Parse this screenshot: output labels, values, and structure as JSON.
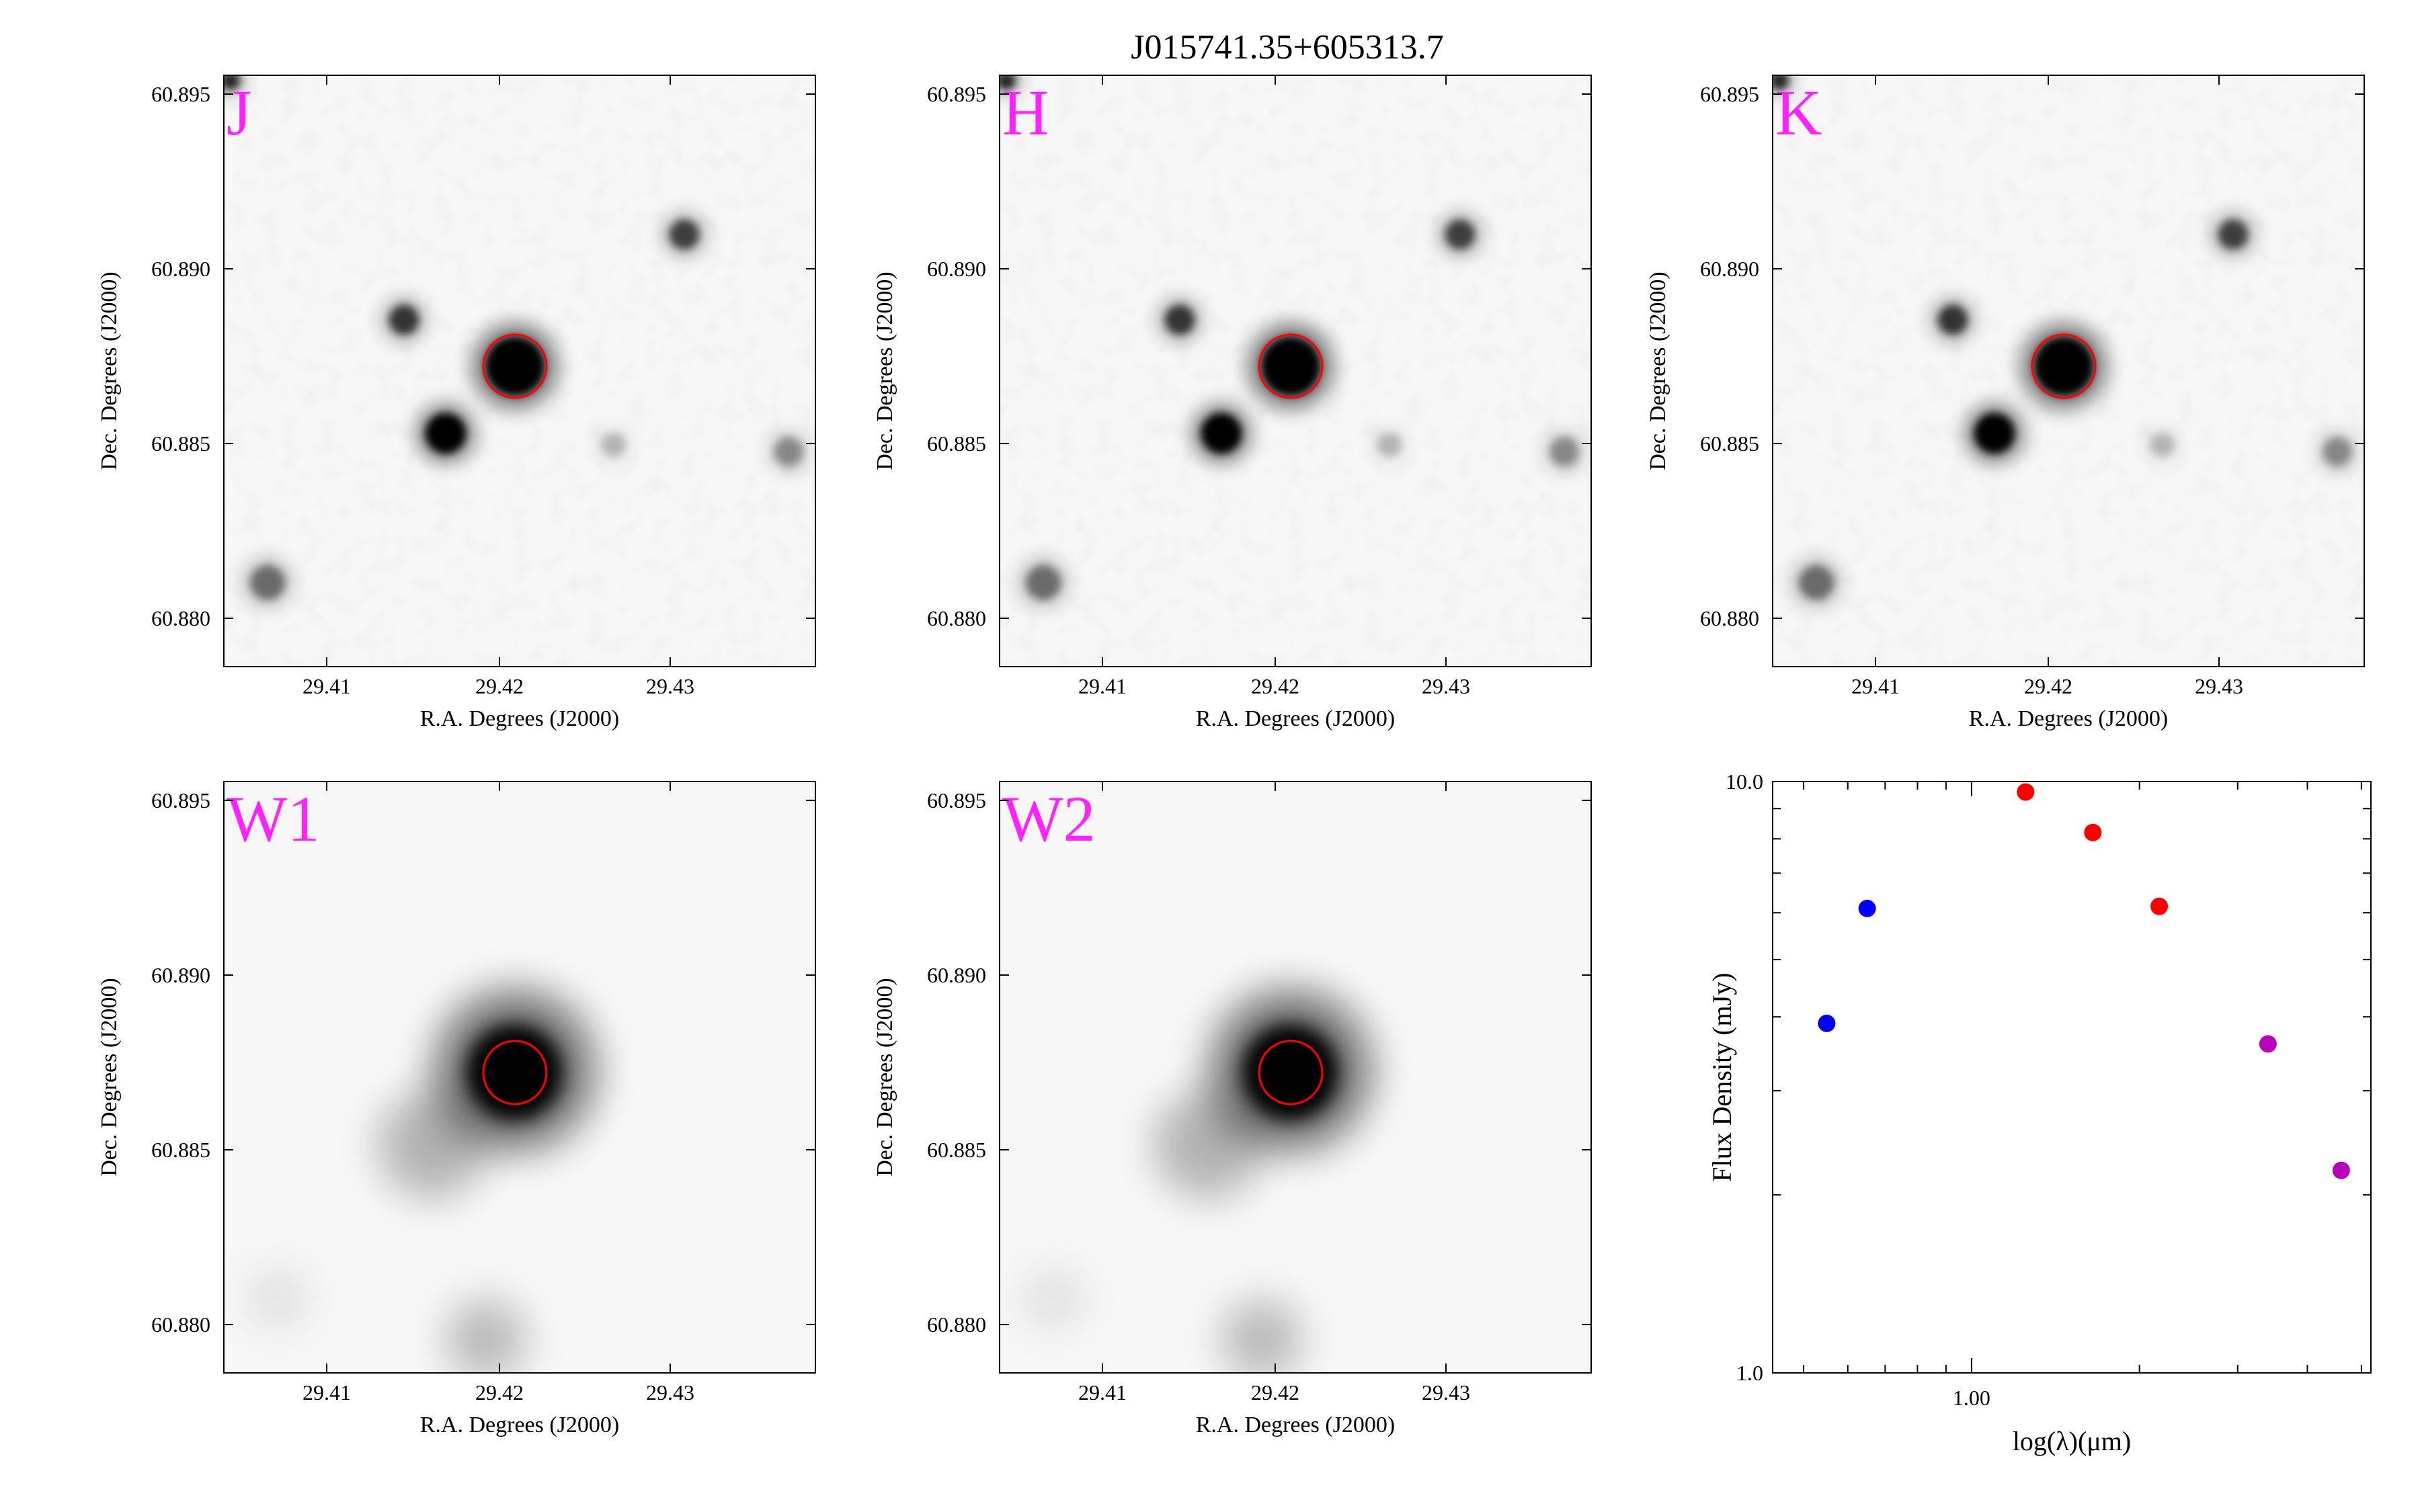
{
  "title": "J015741.35+605313.7",
  "image_panels": [
    {
      "band": "J",
      "xlabel": "R.A. Degrees (J2000)",
      "ylabel": "Dec. Degrees (J2000)",
      "xticks": [
        "29.41",
        "29.42",
        "29.43"
      ],
      "yticks": [
        "60.895",
        "60.890",
        "60.885",
        "60.880"
      ]
    },
    {
      "band": "H",
      "xlabel": "R.A. Degrees (J2000)",
      "ylabel": "Dec. Degrees (J2000)",
      "xticks": [
        "29.41",
        "29.42",
        "29.43"
      ],
      "yticks": [
        "60.895",
        "60.890",
        "60.885",
        "60.880"
      ]
    },
    {
      "band": "K",
      "xlabel": "R.A. Degrees (J2000)",
      "ylabel": "Dec. Degrees (J2000)",
      "xticks": [
        "29.41",
        "29.42",
        "29.43"
      ],
      "yticks": [
        "60.895",
        "60.890",
        "60.885",
        "60.880"
      ]
    },
    {
      "band": "W1",
      "xlabel": "R.A. Degrees (J2000)",
      "ylabel": "Dec. Degrees (J2000)",
      "xticks": [
        "29.41",
        "29.42",
        "29.43"
      ],
      "yticks": [
        "60.895",
        "60.890",
        "60.885",
        "60.880"
      ]
    },
    {
      "band": "W2",
      "xlabel": "R.A. Degrees (J2000)",
      "ylabel": "Dec. Degrees (J2000)",
      "xticks": [
        "29.41",
        "29.42",
        "29.43"
      ],
      "yticks": [
        "60.895",
        "60.890",
        "60.885",
        "60.880"
      ]
    }
  ],
  "chart_data": {
    "type": "scatter",
    "xlabel": "log(λ)(μm)",
    "ylabel": "Flux Density (mJy)",
    "xscale": "log",
    "yscale": "log",
    "xlim": [
      0.44,
      5.2
    ],
    "ylim": [
      1.0,
      10.0
    ],
    "xtick_labels": [
      "1.00"
    ],
    "ytick_labels": [
      "10.0",
      "1.0"
    ],
    "series": [
      {
        "color": "#0000ff",
        "points": [
          {
            "x": 0.55,
            "y": 3.9
          },
          {
            "x": 0.65,
            "y": 6.1
          }
        ]
      },
      {
        "color": "#ff0000",
        "points": [
          {
            "x": 1.25,
            "y": 9.6
          },
          {
            "x": 1.65,
            "y": 8.2
          },
          {
            "x": 2.17,
            "y": 6.15
          }
        ]
      },
      {
        "color": "#bb00bb",
        "points": [
          {
            "x": 3.4,
            "y": 3.6
          },
          {
            "x": 4.6,
            "y": 2.2
          }
        ]
      }
    ],
    "grid": false
  },
  "colors": {
    "band_label": "#ff22ff",
    "aperture": "#ff0000"
  }
}
